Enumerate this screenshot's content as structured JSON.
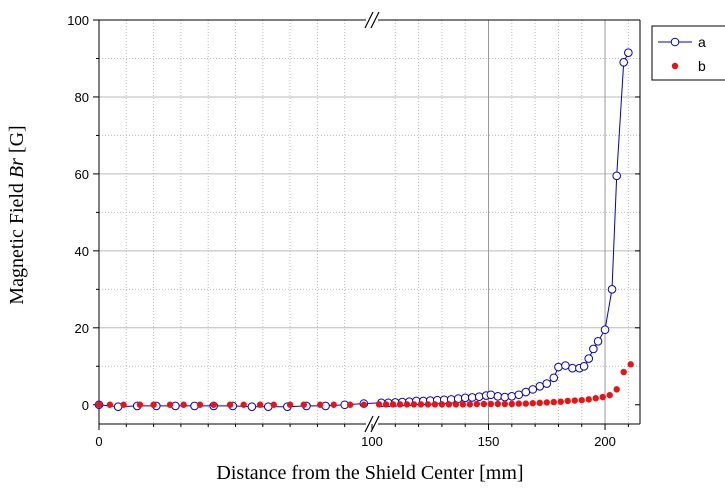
{
  "chart_data": {
    "type": "scatter",
    "title": "",
    "xlabel": "Distance from the Shield Center [mm]",
    "ylabel_prefix": "Magnetic Field",
    "ylabel_symbol": "Br",
    "ylabel_unit": "[G]",
    "ylim": [
      -5,
      100
    ],
    "x_axis_broken": true,
    "x_segments": [
      {
        "range": [
          0,
          100
        ],
        "ticks": [
          0,
          100
        ],
        "minor_ticks": [
          10,
          20,
          30,
          40,
          50,
          60,
          70,
          80,
          90
        ]
      },
      {
        "range": [
          100,
          215
        ],
        "ticks": [
          100,
          150,
          200
        ],
        "minor_ticks": [
          110,
          120,
          130,
          140,
          160,
          170,
          180,
          190,
          210
        ]
      }
    ],
    "y_ticks": [
      0,
      20,
      40,
      60,
      80,
      100
    ],
    "grid": true,
    "legend_position": "top-right-outside",
    "series": [
      {
        "name": "a",
        "color": "#0000cc",
        "marker": "open-circle",
        "line": true,
        "points": [
          [
            0,
            0
          ],
          [
            7,
            -0.5
          ],
          [
            14,
            -0.3
          ],
          [
            21,
            -0.3
          ],
          [
            28,
            -0.3
          ],
          [
            35,
            -0.3
          ],
          [
            42,
            -0.3
          ],
          [
            49,
            -0.3
          ],
          [
            56,
            -0.5
          ],
          [
            62,
            -0.5
          ],
          [
            69,
            -0.5
          ],
          [
            76,
            -0.3
          ],
          [
            83,
            -0.3
          ],
          [
            90,
            0
          ],
          [
            97,
            0.3
          ],
          [
            104,
            0.5
          ],
          [
            107,
            0.5
          ],
          [
            110,
            0.6
          ],
          [
            113,
            0.7
          ],
          [
            116,
            0.8
          ],
          [
            119,
            1.0
          ],
          [
            122,
            1.0
          ],
          [
            125,
            1.1
          ],
          [
            128,
            1.2
          ],
          [
            131,
            1.3
          ],
          [
            134,
            1.4
          ],
          [
            137,
            1.6
          ],
          [
            140,
            1.8
          ],
          [
            143,
            1.9
          ],
          [
            146,
            2.1
          ],
          [
            149,
            2.4
          ],
          [
            151,
            2.6
          ],
          [
            154,
            2.2
          ],
          [
            157,
            2.0
          ],
          [
            160,
            2.2
          ],
          [
            163,
            2.6
          ],
          [
            166,
            3.3
          ],
          [
            169,
            4.0
          ],
          [
            172,
            4.8
          ],
          [
            175,
            5.5
          ],
          [
            178,
            7.0
          ],
          [
            180,
            9.8
          ],
          [
            183,
            10.2
          ],
          [
            186,
            9.5
          ],
          [
            189,
            9.5
          ],
          [
            191,
            10.0
          ],
          [
            193,
            12.0
          ],
          [
            195,
            14.5
          ],
          [
            197,
            16.5
          ],
          [
            200,
            19.5
          ],
          [
            203,
            30.0
          ],
          [
            205,
            59.5
          ],
          [
            208,
            89.0
          ],
          [
            210,
            91.5
          ]
        ]
      },
      {
        "name": "b",
        "color": "#ee1111",
        "marker": "filled-circle",
        "line": false,
        "points": [
          [
            0,
            0
          ],
          [
            4,
            0
          ],
          [
            9,
            0
          ],
          [
            15,
            0
          ],
          [
            20,
            0
          ],
          [
            26,
            0
          ],
          [
            31,
            0
          ],
          [
            37,
            0
          ],
          [
            42,
            0
          ],
          [
            48,
            0
          ],
          [
            53,
            0
          ],
          [
            59,
            0
          ],
          [
            64,
            0
          ],
          [
            70,
            0
          ],
          [
            75,
            0
          ],
          [
            81,
            0
          ],
          [
            86,
            0
          ],
          [
            92,
            0
          ],
          [
            97,
            0
          ],
          [
            103,
            0.1
          ],
          [
            106,
            0.1
          ],
          [
            109,
            0.1
          ],
          [
            112,
            0.1
          ],
          [
            115,
            0.1
          ],
          [
            118,
            0.1
          ],
          [
            121,
            0.1
          ],
          [
            124,
            0.1
          ],
          [
            127,
            0.1
          ],
          [
            130,
            0.1
          ],
          [
            133,
            0.1
          ],
          [
            136,
            0.1
          ],
          [
            139,
            0.1
          ],
          [
            142,
            0.1
          ],
          [
            145,
            0.2
          ],
          [
            148,
            0.2
          ],
          [
            151,
            0.2
          ],
          [
            154,
            0.2
          ],
          [
            157,
            0.2
          ],
          [
            160,
            0.2
          ],
          [
            163,
            0.3
          ],
          [
            166,
            0.3
          ],
          [
            169,
            0.4
          ],
          [
            172,
            0.5
          ],
          [
            175,
            0.6
          ],
          [
            178,
            0.7
          ],
          [
            181,
            0.8
          ],
          [
            184,
            1.0
          ],
          [
            187,
            1.1
          ],
          [
            190,
            1.2
          ],
          [
            193,
            1.4
          ],
          [
            196,
            1.7
          ],
          [
            199,
            2.0
          ],
          [
            202,
            2.5
          ],
          [
            205,
            4.0
          ],
          [
            208,
            8.5
          ],
          [
            211,
            10.5
          ]
        ]
      }
    ]
  }
}
